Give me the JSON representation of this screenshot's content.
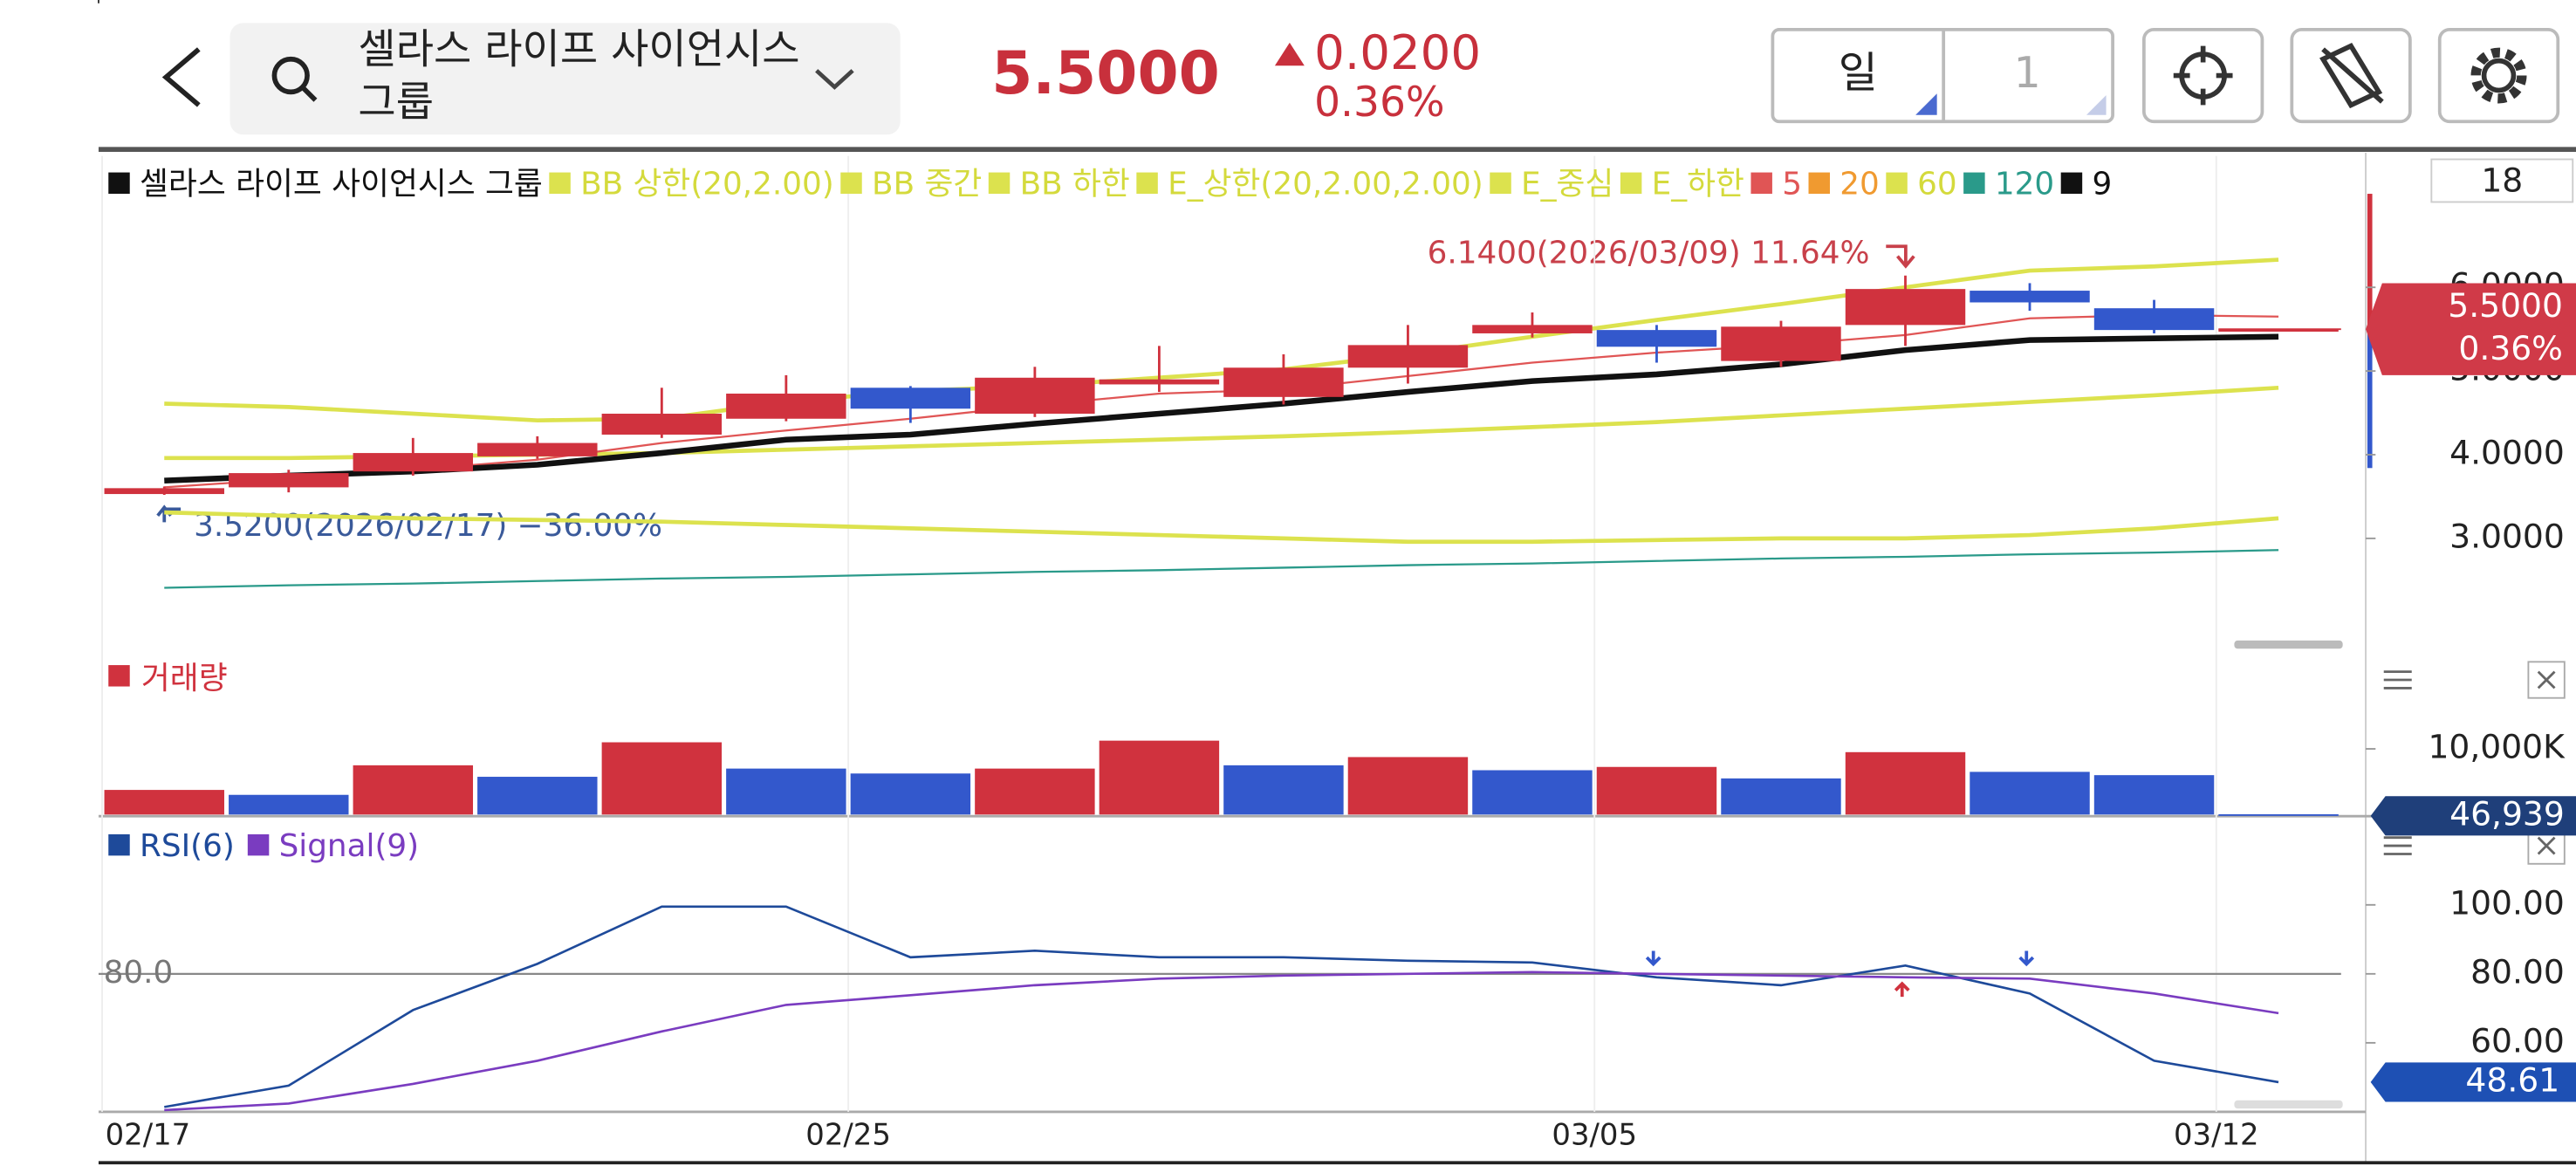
{
  "header": {
    "title_lines": [
      "셀라스 라이프 사이언시스",
      "그룹"
    ],
    "price": "5.5000",
    "change": "0.0200",
    "change_pct": "0.36%",
    "period": "일",
    "period_count": "1"
  },
  "price_chart": {
    "count": "18",
    "legend": [
      {
        "label": "셀라스 라이프 사이언시스 그룹",
        "color": "#111111"
      },
      {
        "label": "BB 상한(20,2.00)",
        "color": "#dce24e"
      },
      {
        "label": "BB 중간",
        "color": "#dce24e"
      },
      {
        "label": "BB 하한",
        "color": "#dce24e"
      },
      {
        "label": "E_상한(20,2.00,2.00)",
        "color": "#dce24e"
      },
      {
        "label": "E_중심",
        "color": "#dce24e"
      },
      {
        "label": "E_하한",
        "color": "#dce24e"
      },
      {
        "label": "5",
        "color": "#e05555"
      },
      {
        "label": "20",
        "color": "#f09a30"
      },
      {
        "label": "60",
        "color": "#dce24e"
      },
      {
        "label": "120",
        "color": "#2a9a8a"
      },
      {
        "label": "9",
        "color": "#111111"
      }
    ],
    "categories": [
      "02/17",
      null,
      null,
      null,
      null,
      null,
      "02/25",
      null,
      null,
      null,
      null,
      null,
      "03/05",
      null,
      null,
      null,
      null,
      "03/12"
    ],
    "candles": [
      {
        "open": 3.53,
        "high": 3.62,
        "low": 3.52,
        "close": 3.6
      },
      {
        "open": 3.61,
        "high": 3.82,
        "low": 3.55,
        "close": 3.78
      },
      {
        "open": 3.8,
        "high": 4.2,
        "low": 3.75,
        "close": 4.02
      },
      {
        "open": 3.98,
        "high": 4.22,
        "low": 3.95,
        "close": 4.14
      },
      {
        "open": 4.24,
        "high": 4.8,
        "low": 4.2,
        "close": 4.49
      },
      {
        "open": 4.43,
        "high": 4.95,
        "low": 4.4,
        "close": 4.73
      },
      {
        "open": 4.8,
        "high": 4.82,
        "low": 4.38,
        "close": 4.55
      },
      {
        "open": 4.49,
        "high": 5.05,
        "low": 4.45,
        "close": 4.92
      },
      {
        "open": 4.84,
        "high": 5.3,
        "low": 4.75,
        "close": 4.9
      },
      {
        "open": 4.69,
        "high": 5.2,
        "low": 4.6,
        "close": 5.04
      },
      {
        "open": 5.04,
        "high": 5.55,
        "low": 4.85,
        "close": 5.31
      },
      {
        "open": 5.45,
        "high": 5.7,
        "low": 5.4,
        "close": 5.55
      },
      {
        "open": 5.49,
        "high": 5.55,
        "low": 5.1,
        "close": 5.29
      },
      {
        "open": 5.12,
        "high": 5.6,
        "low": 5.05,
        "close": 5.53
      },
      {
        "open": 5.55,
        "high": 6.14,
        "low": 5.3,
        "close": 5.98
      },
      {
        "open": 5.96,
        "high": 6.05,
        "low": 5.72,
        "close": 5.82
      },
      {
        "open": 5.75,
        "high": 5.85,
        "low": 5.45,
        "close": 5.49
      },
      {
        "open": 5.5,
        "high": 5.5,
        "low": 5.5,
        "close": 5.5
      }
    ],
    "up_color": "#d0323e",
    "down_color": "#3358cc",
    "lines": [
      {
        "color": "#2a9a8a",
        "width": 1.2,
        "values": [
          2.41,
          2.44,
          2.46,
          2.49,
          2.52,
          2.54,
          2.57,
          2.6,
          2.62,
          2.65,
          2.68,
          2.7,
          2.73,
          2.76,
          2.78,
          2.81,
          2.83,
          2.86
        ]
      },
      {
        "color": "#dce24e",
        "width": 2.5,
        "values": [
          4.61,
          4.57,
          4.49,
          4.41,
          4.43,
          4.63,
          4.76,
          4.82,
          4.92,
          5.02,
          5.2,
          5.41,
          5.61,
          5.8,
          6.0,
          6.2,
          6.25,
          6.33
        ]
      },
      {
        "color": "#dce24e",
        "width": 2.5,
        "values": [
          3.96,
          3.96,
          3.98,
          4.0,
          4.02,
          4.06,
          4.1,
          4.14,
          4.18,
          4.22,
          4.27,
          4.33,
          4.39,
          4.47,
          4.55,
          4.63,
          4.71,
          4.8
        ]
      },
      {
        "color": "#dce24e",
        "width": 2.5,
        "values": [
          3.31,
          3.27,
          3.24,
          3.22,
          3.2,
          3.16,
          3.12,
          3.08,
          3.04,
          3.0,
          2.96,
          2.96,
          2.98,
          3.0,
          3.0,
          3.04,
          3.12,
          3.24
        ]
      },
      {
        "color": "#e05555",
        "width": 1.2,
        "values": [
          3.61,
          3.71,
          3.82,
          3.94,
          4.14,
          4.29,
          4.43,
          4.59,
          4.73,
          4.78,
          4.94,
          5.1,
          5.22,
          5.31,
          5.43,
          5.63,
          5.67,
          5.65
        ]
      },
      {
        "color": "#111111",
        "width": 3.5,
        "values": [
          3.69,
          3.75,
          3.8,
          3.88,
          4.02,
          4.18,
          4.24,
          4.37,
          4.49,
          4.61,
          4.75,
          4.88,
          4.96,
          5.08,
          5.25,
          5.37,
          5.39,
          5.41
        ]
      }
    ],
    "ylim": [
      1.78,
      7.53
    ],
    "yticks": [
      {
        "value": 6,
        "label": "6.0000"
      },
      {
        "value": 5,
        "label": "5.0000"
      },
      {
        "value": 4,
        "label": "4.0000"
      },
      {
        "value": 3,
        "label": "3.0000"
      }
    ],
    "high_note": "6.1400(2026/03/09) 11.64%",
    "low_note": "3.5200(2026/02/17) −36.00%",
    "badge": [
      "5.5000",
      "0.36%"
    ]
  },
  "volume_chart": {
    "legend": "거래량",
    "legend_color": "#d0323e",
    "values": [
      3750000,
      3000000,
      7500000,
      5750000,
      11000000,
      7000000,
      6250000,
      7000000,
      11250000,
      7500000,
      8750000,
      6750000,
      7250000,
      5500000,
      9500000,
      6500000,
      6000000,
      46939
    ],
    "colors": [
      "#d0323e",
      "#3358cc",
      "#d0323e",
      "#3358cc",
      "#d0323e",
      "#3358cc",
      "#3358cc",
      "#d0323e",
      "#d0323e",
      "#3358cc",
      "#d0323e",
      "#3358cc",
      "#d0323e",
      "#3358cc",
      "#d0323e",
      "#3358cc",
      "#3358cc",
      "#3358cc"
    ],
    "ylim": [
      0,
      24000000
    ],
    "yticks": [
      {
        "value": 10000000,
        "label": "10,000K"
      }
    ],
    "badge": "46,939"
  },
  "rsi_chart": {
    "series": [
      {
        "name": "RSI(6)",
        "color": "#1e4a9a",
        "values": [
          41.4,
          47.6,
          69.5,
          82.9,
          99.5,
          99.5,
          84.8,
          86.7,
          84.8,
          84.8,
          83.8,
          83.3,
          79.0,
          76.7,
          82.4,
          74.3,
          54.8,
          48.6
        ]
      },
      {
        "name": "Signal(9)",
        "color": "#7a3cc0",
        "values": [
          40.5,
          42.4,
          48.1,
          54.8,
          63.3,
          71.0,
          73.8,
          76.7,
          78.6,
          79.5,
          80.0,
          80.5,
          80.0,
          79.5,
          79.0,
          78.6,
          74.3,
          68.6
        ]
      }
    ],
    "ylim": [
      40,
      121.9
    ],
    "yticks": [
      {
        "value": 100,
        "label": "100.00"
      },
      {
        "value": 80,
        "label": "80.00"
      },
      {
        "value": 60,
        "label": "60.00"
      }
    ],
    "reference": {
      "value": 80,
      "label": "80.0"
    },
    "badge": "48.61"
  }
}
